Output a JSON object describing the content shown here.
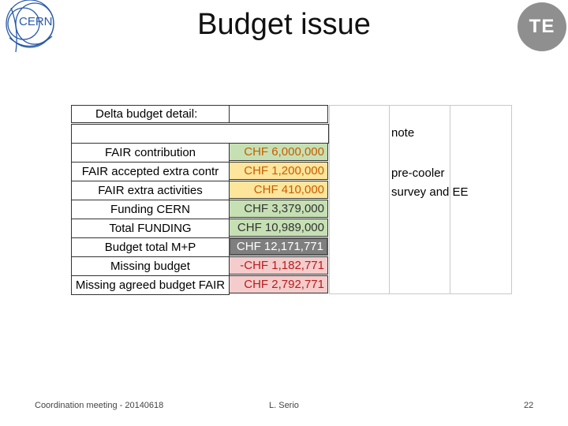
{
  "slide": {
    "title": "Budget issue",
    "logo_left_text": "CERN",
    "logo_right_text": "TE"
  },
  "table": {
    "header": "Delta budget detail:",
    "note_header": "note",
    "rows": [
      {
        "label": "FAIR contribution",
        "value": "CHF 6,000,000",
        "bg": "#c6e0b4",
        "color": "#c75d00"
      },
      {
        "label": "FAIR accepted extra contr",
        "value": "CHF 1,200,000",
        "bg": "#fde59b",
        "color": "#c75d00"
      },
      {
        "label": "FAIR extra activities",
        "value": "CHF 410,000",
        "bg": "#fde59b",
        "color": "#c75d00"
      },
      {
        "label": "Funding CERN",
        "value": "CHF 3,379,000",
        "bg": "#c6e0b4",
        "color": "#333333"
      },
      {
        "label": "Total FUNDING",
        "value": "CHF 10,989,000",
        "bg": "#c6e0b4",
        "color": "#333333"
      },
      {
        "label": "Budget total M+P",
        "value": "CHF 12,171,771",
        "bg": "#7f7f7f",
        "color": "#ffffff"
      },
      {
        "label": "Missing budget",
        "value": "-CHF 1,182,771",
        "bg": "#f4cccc",
        "color": "#b91c1c"
      },
      {
        "label": "Missing agreed budget FAIR",
        "value": "CHF 2,792,771",
        "bg": "#f4cccc",
        "color": "#b91c1c"
      }
    ],
    "note_lines": [
      "pre-cooler",
      "survey and EE"
    ]
  },
  "footer": {
    "left": "Coordination meeting - 20140618",
    "center": "L. Serio",
    "page": "22"
  }
}
